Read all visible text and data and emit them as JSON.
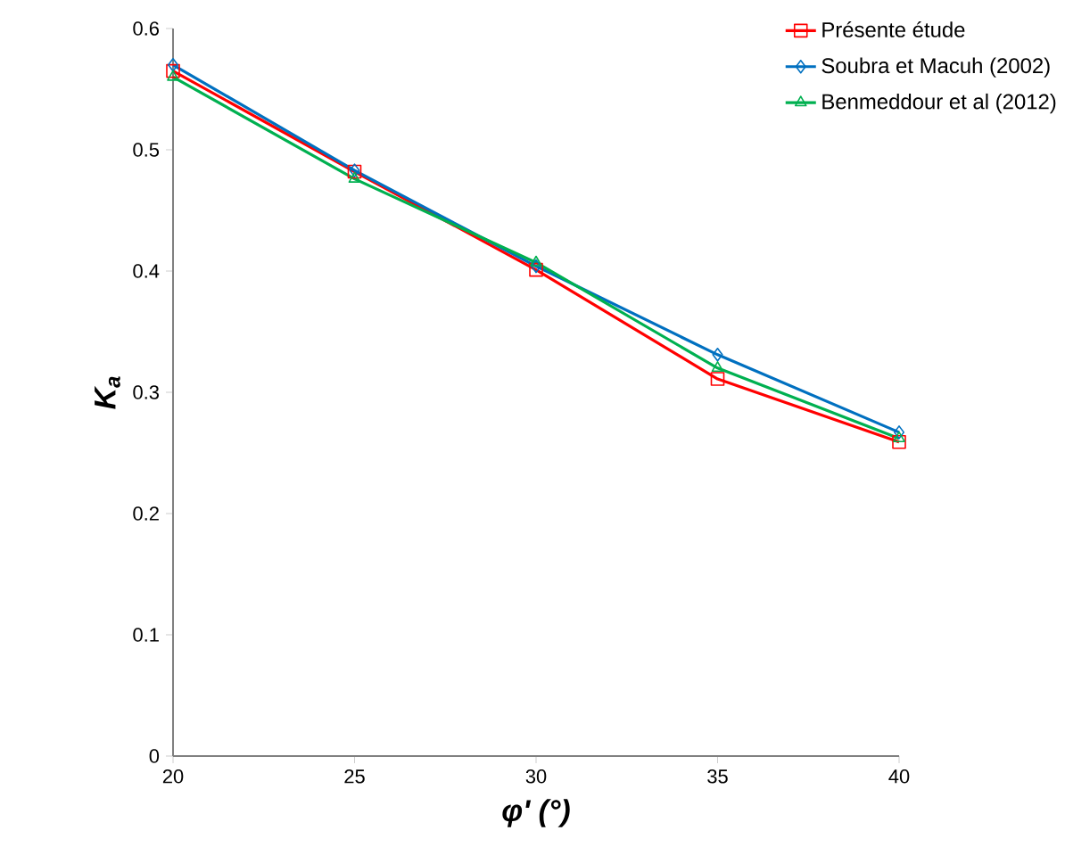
{
  "chart_data": {
    "type": "line",
    "xlabel": "φ' (°)",
    "ylabel": "K$_{a}$",
    "x": [
      20,
      25,
      30,
      35,
      40
    ],
    "series": [
      {
        "name": "Présente étude",
        "color": "#ff0000",
        "marker": "square",
        "values": [
          0.565,
          0.482,
          0.401,
          0.311,
          0.259
        ]
      },
      {
        "name": "Soubra et Macuh (2002)",
        "color": "#0070c0",
        "marker": "diamond",
        "values": [
          0.57,
          0.483,
          0.404,
          0.331,
          0.267
        ]
      },
      {
        "name": "Benmeddour et al (2012)",
        "color": "#00b050",
        "marker": "triangle",
        "values": [
          0.56,
          0.476,
          0.407,
          0.32,
          0.262
        ]
      }
    ],
    "xlim": [
      20,
      40
    ],
    "xticks": [
      20,
      25,
      30,
      35,
      40
    ],
    "ylim": [
      0,
      0.6
    ],
    "yticks": [
      0,
      0.1,
      0.2,
      0.3,
      0.4,
      0.5,
      0.6
    ],
    "grid": false,
    "legend": "top right",
    "line_style": "solid"
  }
}
